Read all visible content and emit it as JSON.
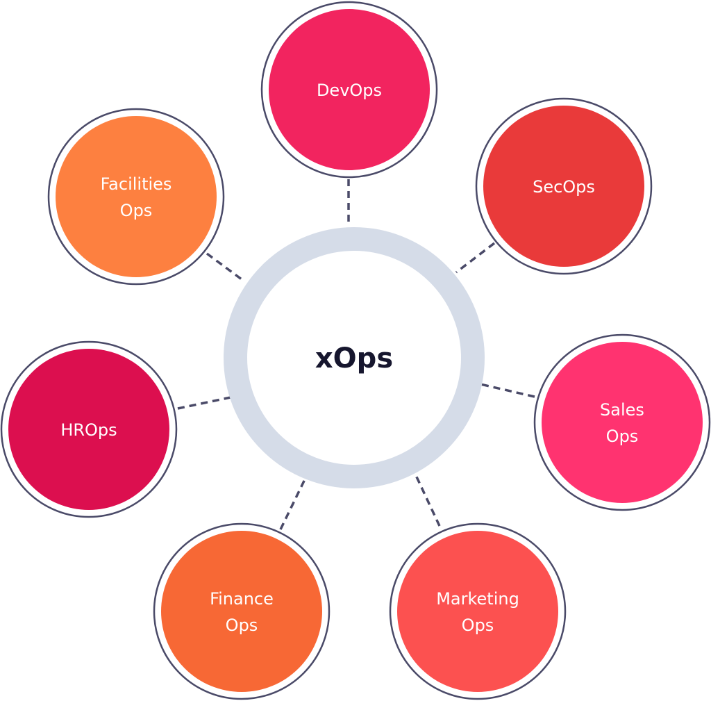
{
  "center": {
    "label": "xOps",
    "ring_color": "#d5dce8"
  },
  "nodes": [
    {
      "lines": [
        "DevOps"
      ],
      "color": "#f2245f"
    },
    {
      "lines": [
        "SecOps"
      ],
      "color": "#e93a3a"
    },
    {
      "lines": [
        "Sales",
        "Ops"
      ],
      "color": "#ff3370"
    },
    {
      "lines": [
        "Marketing",
        "Ops"
      ],
      "color": "#fc5150"
    },
    {
      "lines": [
        "Finance",
        "Ops"
      ],
      "color": "#f76835"
    },
    {
      "lines": [
        "HROps"
      ],
      "color": "#dc0f4f"
    },
    {
      "lines": [
        "Facilities",
        "Ops"
      ],
      "color": "#fd8040"
    }
  ]
}
